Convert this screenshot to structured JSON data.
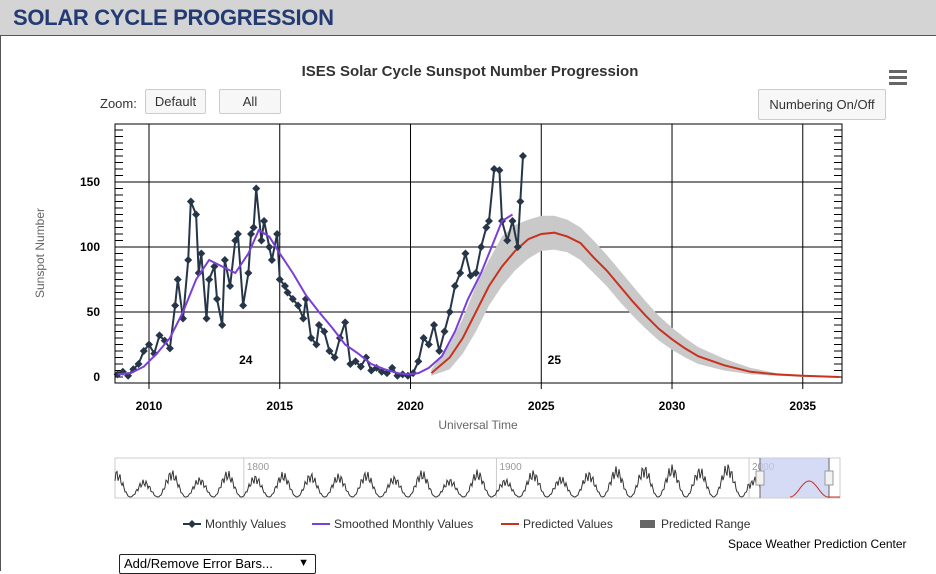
{
  "header": {
    "title": "SOLAR CYCLE PROGRESSION"
  },
  "toolbar": {
    "zoom_label": "Zoom:",
    "zoom_default": "Default",
    "zoom_all": "All",
    "numbering": "Numbering On/Off",
    "error_bars": "Add/Remove Error Bars..."
  },
  "credit": "Space Weather Prediction Center",
  "navigator": {
    "labels": [
      "1800",
      "1900",
      "2000"
    ]
  },
  "colors": {
    "monthly": "#263648",
    "smoothed": "#7a3fd9",
    "predicted": "#c8321f",
    "range": "#c9c9c9",
    "nav_line": "#333333",
    "nav_select": "#c7cdf2"
  },
  "chart_data": {
    "type": "line",
    "title": "ISES Solar Cycle Sunspot Number Progression",
    "xlabel": "Universal Time",
    "ylabel": "Sunspot Number",
    "xlim": [
      2008.7,
      2036.5
    ],
    "ylim": [
      0,
      195
    ],
    "x_ticks": [
      2010,
      2015,
      2020,
      2025,
      2030,
      2035
    ],
    "y_ticks": [
      0,
      50,
      100,
      150
    ],
    "grid": true,
    "legend_position": "bottom",
    "cycle_labels": [
      {
        "text": "24",
        "x": 2013.7,
        "y": 10
      },
      {
        "text": "25",
        "x": 2025.5,
        "y": 10
      }
    ],
    "series": [
      {
        "name": "Monthly Values",
        "type": "line-markers",
        "x": [
          2008.8,
          2009.0,
          2009.2,
          2009.4,
          2009.6,
          2009.8,
          2010.0,
          2010.2,
          2010.4,
          2010.6,
          2010.8,
          2011.0,
          2011.1,
          2011.3,
          2011.5,
          2011.6,
          2011.8,
          2011.9,
          2012.0,
          2012.2,
          2012.3,
          2012.5,
          2012.6,
          2012.8,
          2012.9,
          2013.1,
          2013.3,
          2013.4,
          2013.6,
          2013.8,
          2013.9,
          2014.0,
          2014.1,
          2014.3,
          2014.4,
          2014.6,
          2014.7,
          2014.9,
          2015.0,
          2015.2,
          2015.3,
          2015.5,
          2015.7,
          2015.9,
          2016.0,
          2016.2,
          2016.4,
          2016.5,
          2016.7,
          2016.9,
          2017.1,
          2017.3,
          2017.5,
          2017.7,
          2017.9,
          2018.1,
          2018.3,
          2018.5,
          2018.7,
          2018.9,
          2019.1,
          2019.3,
          2019.5,
          2019.7,
          2019.9,
          2020.1,
          2020.3,
          2020.5,
          2020.7,
          2020.9,
          2021.1,
          2021.3,
          2021.5,
          2021.7,
          2021.9,
          2022.1,
          2022.3,
          2022.5,
          2022.7,
          2022.9,
          2023.0,
          2023.2,
          2023.4,
          2023.5,
          2023.7,
          2023.9,
          2024.1,
          2024.2,
          2024.3
        ],
        "y": [
          2,
          4,
          1,
          6,
          10,
          20,
          25,
          18,
          32,
          28,
          22,
          55,
          75,
          45,
          90,
          135,
          125,
          80,
          95,
          45,
          75,
          85,
          60,
          40,
          90,
          70,
          105,
          110,
          55,
          80,
          110,
          115,
          145,
          105,
          120,
          100,
          90,
          110,
          75,
          70,
          65,
          60,
          55,
          45,
          60,
          30,
          25,
          40,
          35,
          20,
          15,
          30,
          42,
          10,
          12,
          8,
          15,
          5,
          7,
          4,
          3,
          7,
          1,
          2,
          1,
          3,
          12,
          30,
          25,
          40,
          20,
          35,
          50,
          70,
          80,
          95,
          78,
          80,
          100,
          115,
          120,
          160,
          159,
          120,
          105,
          120,
          100,
          135,
          170
        ]
      },
      {
        "name": "Smoothed Monthly Values",
        "type": "line",
        "x": [
          2008.8,
          2009.3,
          2009.8,
          2010.3,
          2010.8,
          2011.3,
          2011.8,
          2012.3,
          2012.8,
          2013.3,
          2013.8,
          2014.2,
          2014.6,
          2015.0,
          2015.5,
          2016.0,
          2016.5,
          2017.0,
          2017.5,
          2018.0,
          2018.5,
          2019.0,
          2019.5,
          2019.9,
          2020.3,
          2020.7,
          2021.2,
          2021.7,
          2022.2,
          2022.7,
          2023.1,
          2023.5,
          2023.9
        ],
        "y": [
          2,
          3,
          8,
          18,
          30,
          50,
          75,
          90,
          85,
          80,
          95,
          113,
          108,
          95,
          80,
          63,
          50,
          38,
          25,
          18,
          10,
          6,
          3,
          2,
          3,
          7,
          16,
          35,
          60,
          80,
          100,
          120,
          125
        ]
      },
      {
        "name": "Predicted Values",
        "type": "line",
        "x": [
          2020.8,
          2021.5,
          2022.0,
          2022.5,
          2023.0,
          2023.5,
          2024.0,
          2024.5,
          2025.0,
          2025.5,
          2026.0,
          2026.5,
          2027.0,
          2027.5,
          2028.0,
          2028.5,
          2029.0,
          2029.5,
          2030.0,
          2030.5,
          2031.0,
          2032.0,
          2033.0,
          2034.0,
          2035.0,
          2036.4
        ],
        "y": [
          3,
          15,
          30,
          50,
          70,
          85,
          97,
          106,
          110,
          111,
          108,
          103,
          92,
          82,
          70,
          58,
          47,
          37,
          29,
          22,
          16,
          9,
          4,
          2,
          1,
          0
        ]
      },
      {
        "name": "Predicted Range",
        "type": "band",
        "x": [
          2020.8,
          2021.5,
          2022.0,
          2022.5,
          2023.0,
          2023.5,
          2024.0,
          2024.5,
          2025.0,
          2025.5,
          2026.0,
          2026.5,
          2027.0,
          2027.5,
          2028.0,
          2028.5,
          2029.0,
          2029.5,
          2030.0,
          2030.5,
          2031.0,
          2032.0,
          2033.0,
          2034.0,
          2035.0,
          2036.4
        ],
        "low": [
          1,
          6,
          18,
          35,
          55,
          70,
          82,
          91,
          97,
          98,
          96,
          90,
          80,
          70,
          58,
          47,
          37,
          28,
          21,
          15,
          10,
          5,
          2,
          1,
          0,
          0
        ],
        "high": [
          6,
          25,
          45,
          70,
          90,
          108,
          117,
          121,
          124,
          124,
          121,
          115,
          105,
          94,
          82,
          70,
          58,
          47,
          38,
          30,
          23,
          14,
          7,
          3,
          1,
          0
        ]
      }
    ]
  }
}
